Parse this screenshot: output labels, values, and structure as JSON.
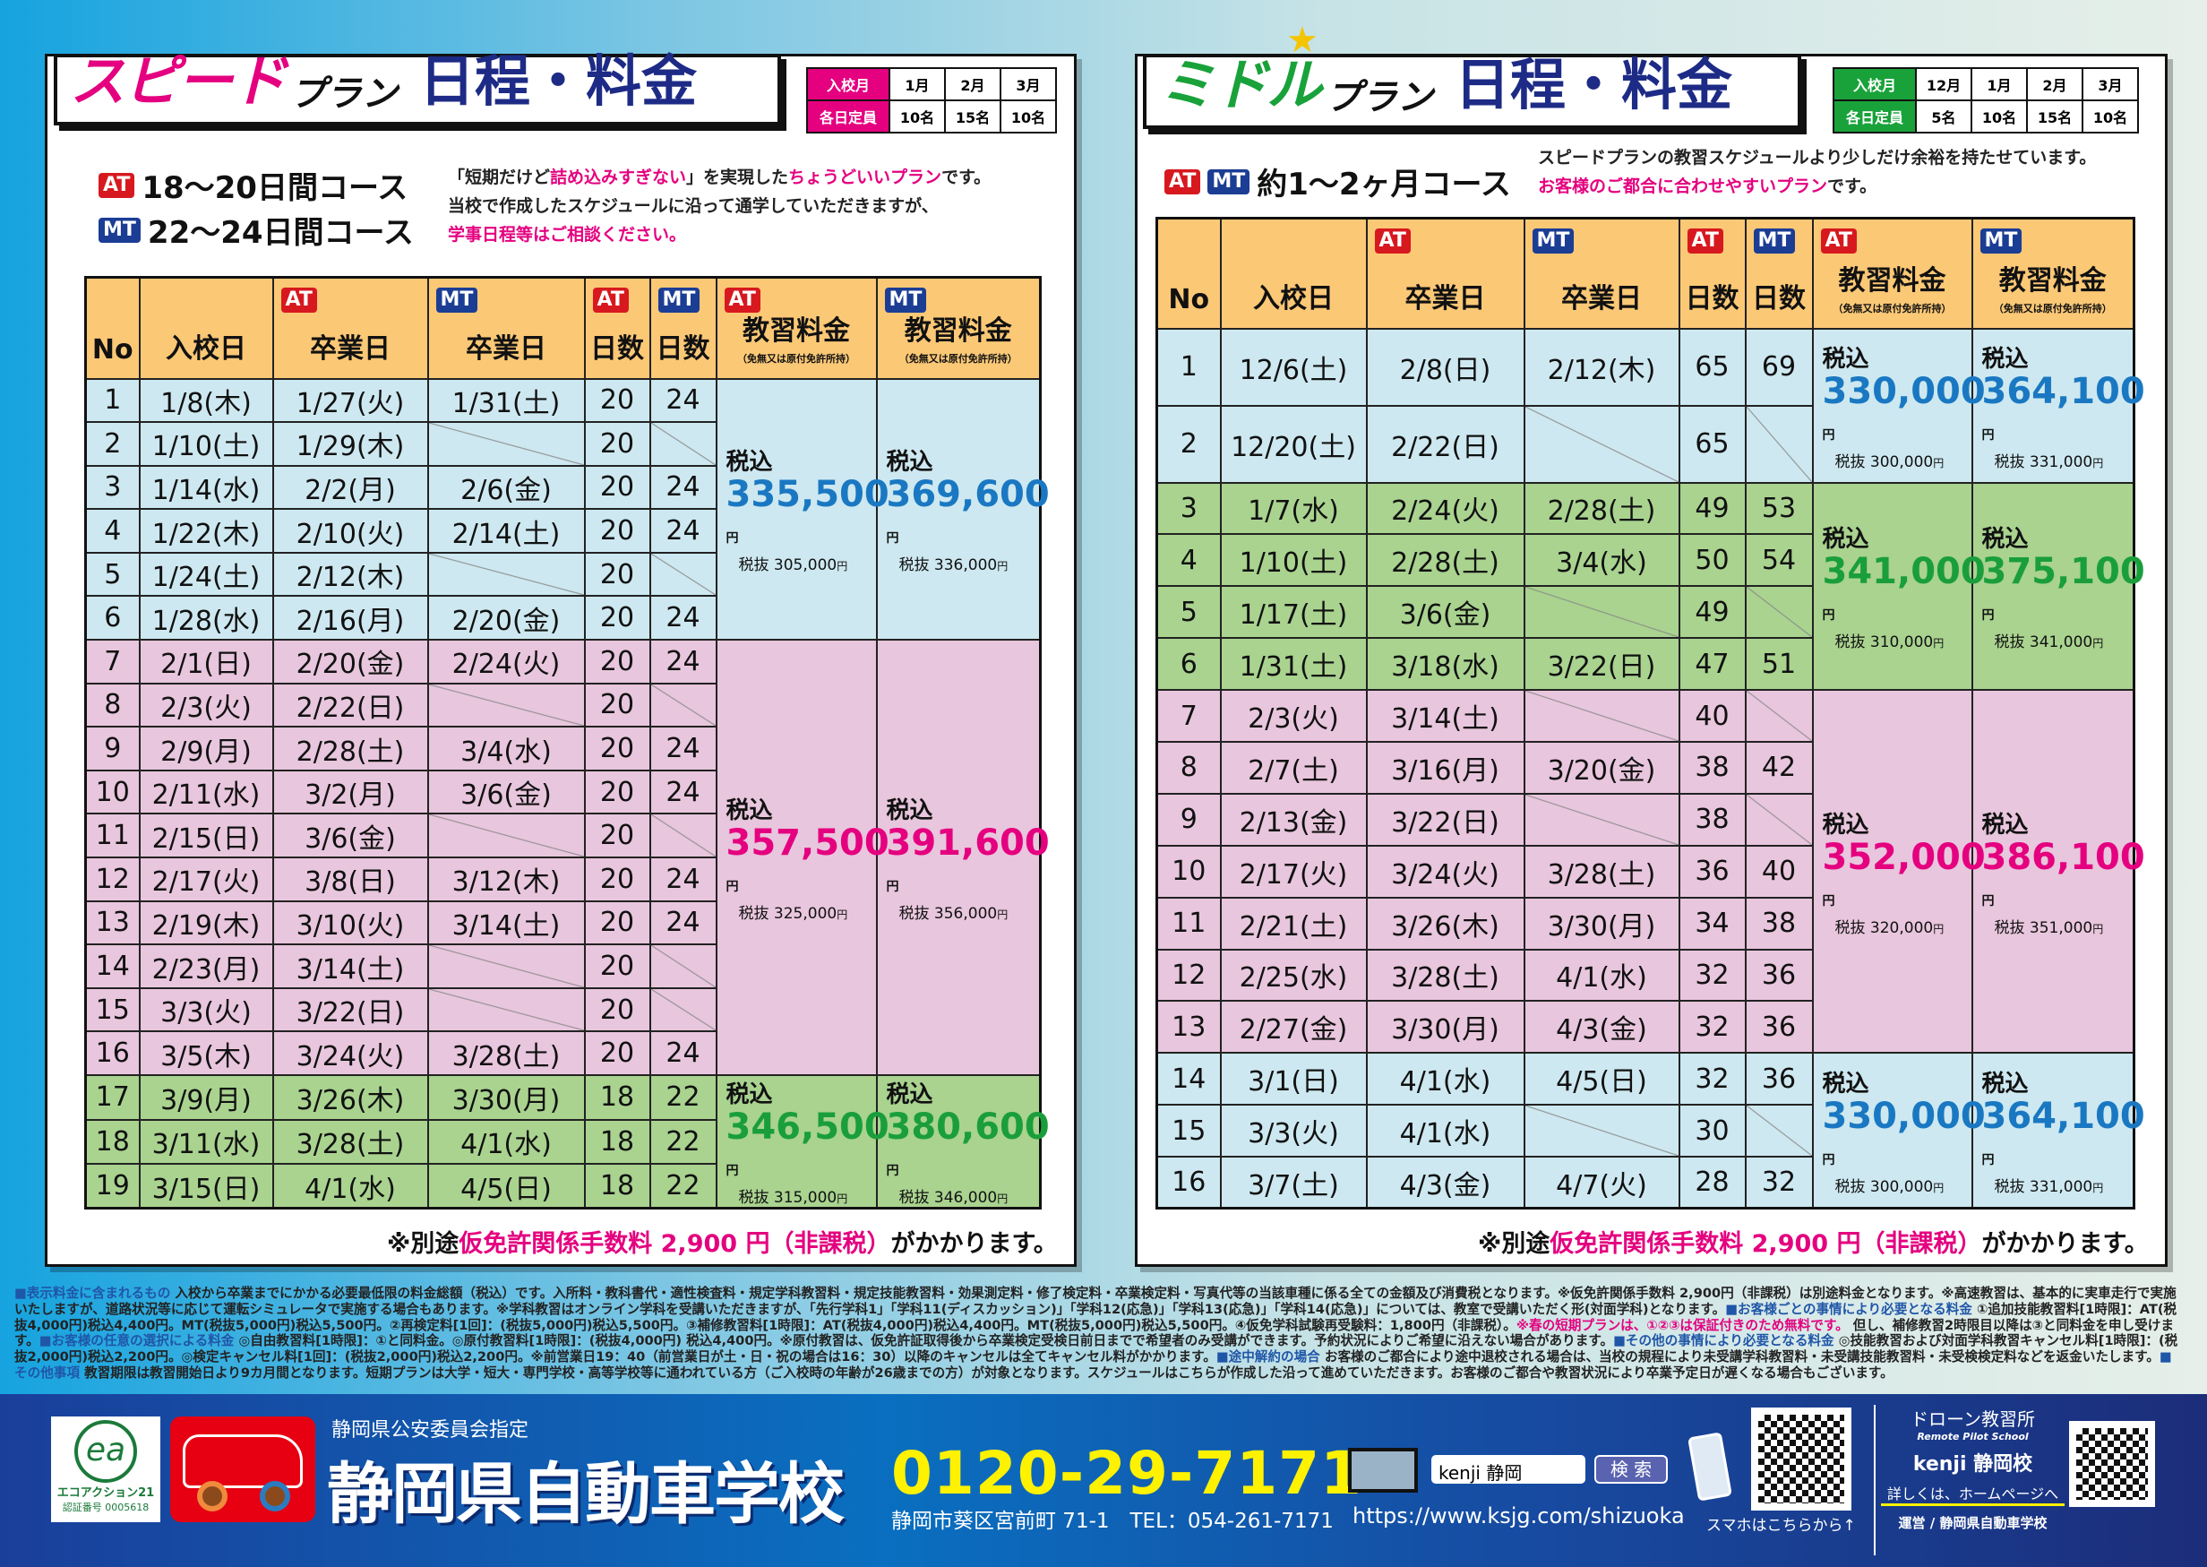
{
  "speed": {
    "title": {
      "a": "スピード",
      "b": "プラン",
      "c": "日程・料金"
    },
    "capacity": {
      "month_label": "入校月",
      "cap_label": "各日定員",
      "months": [
        "1月",
        "2月",
        "3月"
      ],
      "caps": [
        "10名",
        "15名",
        "10名"
      ]
    },
    "courses": [
      {
        "badges": [
          "AT"
        ],
        "text": "18～20日間コース"
      },
      {
        "badges": [
          "MT"
        ],
        "text": "22～24日間コース"
      }
    ],
    "desc": [
      [
        {
          "t": "「短期だけど"
        },
        {
          "t": "詰め込みすぎない",
          "c": "pk"
        },
        {
          "t": "」を実現した"
        },
        {
          "t": "ちょうどいいプラン",
          "c": "pk"
        },
        {
          "t": "です。"
        }
      ],
      [
        {
          "t": "当校で作成したスケジュールに沿って通学していただきますが、"
        }
      ],
      [
        {
          "t": "学事日程等はご相談ください。",
          "c": "pk"
        }
      ]
    ],
    "headers": [
      {
        "t": "No"
      },
      {
        "t": "入校日"
      },
      {
        "t": "卒業日",
        "b": "AT"
      },
      {
        "t": "卒業日",
        "b": "MT"
      },
      {
        "t": "日数",
        "b": "AT"
      },
      {
        "t": "日数",
        "b": "MT"
      },
      {
        "t": "教習料金",
        "b": "AT",
        "s": "（免無又は原付免許所持）"
      },
      {
        "t": "教習料金",
        "b": "MT",
        "s": "（免無又は原付免許所持）"
      }
    ],
    "rows": [
      [
        "1",
        "1/8(木)",
        "1/27(火)",
        "1/31(土)",
        "20",
        "24"
      ],
      [
        "2",
        "1/10(土)",
        "1/29(木)",
        "",
        "20",
        ""
      ],
      [
        "3",
        "1/14(水)",
        "2/2(月)",
        "2/6(金)",
        "20",
        "24"
      ],
      [
        "4",
        "1/22(木)",
        "2/10(火)",
        "2/14(土)",
        "20",
        "24"
      ],
      [
        "5",
        "1/24(土)",
        "2/12(木)",
        "",
        "20",
        ""
      ],
      [
        "6",
        "1/28(水)",
        "2/16(月)",
        "2/20(金)",
        "20",
        "24"
      ],
      [
        "7",
        "2/1(日)",
        "2/20(金)",
        "2/24(火)",
        "20",
        "24"
      ],
      [
        "8",
        "2/3(火)",
        "2/22(日)",
        "",
        "20",
        ""
      ],
      [
        "9",
        "2/9(月)",
        "2/28(土)",
        "3/4(水)",
        "20",
        "24"
      ],
      [
        "10",
        "2/11(水)",
        "3/2(月)",
        "3/6(金)",
        "20",
        "24"
      ],
      [
        "11",
        "2/15(日)",
        "3/6(金)",
        "",
        "20",
        ""
      ],
      [
        "12",
        "2/17(火)",
        "3/8(日)",
        "3/12(木)",
        "20",
        "24"
      ],
      [
        "13",
        "2/19(木)",
        "3/10(火)",
        "3/14(土)",
        "20",
        "24"
      ],
      [
        "14",
        "2/23(月)",
        "3/14(土)",
        "",
        "20",
        ""
      ],
      [
        "15",
        "3/3(火)",
        "3/22(日)",
        "",
        "20",
        ""
      ],
      [
        "16",
        "3/5(木)",
        "3/24(火)",
        "3/28(土)",
        "20",
        "24"
      ],
      [
        "17",
        "3/9(月)",
        "3/26(木)",
        "3/30(月)",
        "18",
        "22"
      ],
      [
        "18",
        "3/11(水)",
        "3/28(土)",
        "4/1(水)",
        "18",
        "22"
      ],
      [
        "19",
        "3/15(日)",
        "4/1(水)",
        "4/5(日)",
        "18",
        "22"
      ]
    ],
    "groups": [
      {
        "rows": 6,
        "band": "blue",
        "color": "#1a78c2",
        "at": {
          "in": "335,500",
          "ex": "305,000"
        },
        "mt": {
          "in": "369,600",
          "ex": "336,000"
        }
      },
      {
        "rows": 10,
        "band": "pink",
        "color": "#e4007f",
        "at": {
          "in": "357,500",
          "ex": "325,000"
        },
        "mt": {
          "in": "391,600",
          "ex": "356,000"
        }
      },
      {
        "rows": 3,
        "band": "green",
        "color": "#1a9e3c",
        "at": {
          "in": "346,500",
          "ex": "315,000"
        },
        "mt": {
          "in": "380,600",
          "ex": "346,000"
        }
      }
    ],
    "note": [
      {
        "t": "※別途"
      },
      {
        "t": "仮免許関係手数料 2,900 円（非課税）",
        "c": "pk"
      },
      {
        "t": "がかかります。"
      }
    ]
  },
  "middle": {
    "title": {
      "a": "ミドル",
      "b": "プラン",
      "c": "日程・料金"
    },
    "capacity": {
      "month_label": "入校月",
      "cap_label": "各日定員",
      "months": [
        "12月",
        "1月",
        "2月",
        "3月"
      ],
      "caps": [
        "5名",
        "10名",
        "15名",
        "10名"
      ]
    },
    "courses": [
      {
        "badges": [
          "AT",
          "MT"
        ],
        "text": "約1～2ヶ月コース"
      }
    ],
    "desc": [
      [
        {
          "t": "スピードプランの教習スケジュールより少しだけ余裕を持たせています。"
        }
      ],
      [
        {
          "t": "お客様のご都合に合わせやすいプラン",
          "c": "pk"
        },
        {
          "t": "です。"
        }
      ]
    ],
    "rows": [
      [
        "1",
        "12/6(土)",
        "2/8(日)",
        "2/12(木)",
        "65",
        "69"
      ],
      [
        "2",
        "12/20(土)",
        "2/22(日)",
        "",
        "65",
        ""
      ],
      [
        "3",
        "1/7(水)",
        "2/24(火)",
        "2/28(土)",
        "49",
        "53"
      ],
      [
        "4",
        "1/10(土)",
        "2/28(土)",
        "3/4(水)",
        "50",
        "54"
      ],
      [
        "5",
        "1/17(土)",
        "3/6(金)",
        "",
        "49",
        ""
      ],
      [
        "6",
        "1/31(土)",
        "3/18(水)",
        "3/22(日)",
        "47",
        "51"
      ],
      [
        "7",
        "2/3(火)",
        "3/14(土)",
        "",
        "40",
        ""
      ],
      [
        "8",
        "2/7(土)",
        "3/16(月)",
        "3/20(金)",
        "38",
        "42"
      ],
      [
        "9",
        "2/13(金)",
        "3/22(日)",
        "",
        "38",
        ""
      ],
      [
        "10",
        "2/17(火)",
        "3/24(火)",
        "3/28(土)",
        "36",
        "40"
      ],
      [
        "11",
        "2/21(土)",
        "3/26(木)",
        "3/30(月)",
        "34",
        "38"
      ],
      [
        "12",
        "2/25(水)",
        "3/28(土)",
        "4/1(水)",
        "32",
        "36"
      ],
      [
        "13",
        "2/27(金)",
        "3/30(月)",
        "4/3(金)",
        "32",
        "36"
      ],
      [
        "14",
        "3/1(日)",
        "4/1(水)",
        "4/5(日)",
        "32",
        "36"
      ],
      [
        "15",
        "3/3(火)",
        "4/1(水)",
        "",
        "30",
        ""
      ],
      [
        "16",
        "3/7(土)",
        "4/3(金)",
        "4/7(火)",
        "28",
        "32"
      ]
    ],
    "groups": [
      {
        "rows": 2,
        "band": "blue",
        "color": "#1a78c2",
        "at": {
          "in": "330,000",
          "ex": "300,000"
        },
        "mt": {
          "in": "364,100",
          "ex": "331,000"
        }
      },
      {
        "rows": 4,
        "band": "green",
        "color": "#1a9e3c",
        "at": {
          "in": "341,000",
          "ex": "310,000"
        },
        "mt": {
          "in": "375,100",
          "ex": "341,000"
        }
      },
      {
        "rows": 7,
        "band": "pink",
        "color": "#e4007f",
        "at": {
          "in": "352,000",
          "ex": "320,000"
        },
        "mt": {
          "in": "386,100",
          "ex": "351,000"
        }
      },
      {
        "rows": 3,
        "band": "blue",
        "color": "#1a78c2",
        "at": {
          "in": "330,000",
          "ex": "300,000"
        },
        "mt": {
          "in": "364,100",
          "ex": "331,000"
        }
      }
    ],
    "note": [
      {
        "t": "※別途"
      },
      {
        "t": "仮免許関係手数料 2,900 円（非課税）",
        "c": "pk"
      },
      {
        "t": "がかかります。"
      }
    ]
  },
  "labels": {
    "tax_in": "税込",
    "tax_ex": "税抜",
    "yen": "円"
  },
  "fine_print": [
    {
      "t": "■表示料金に含まれるもの",
      "c": "h"
    },
    {
      "t": " 入校から卒業までにかかる必要最低限の料金総額（税込）です。入所料・教科書代・適性検査料・規定学科教習料・規定技能教習料・効果測定料・修了検定料・卒業検定料・写真代等の当該車種に係る全ての金額及び消費税となります。※仮免許関係手数料 2,900円（非課税）は別途料金となります。※高速教習は、基本的に実車走行で実施いたしますが、道路状況等に応じて運転シミュレータで実施する場合もあります。※学科教習はオンライン学科を受講いただきますが、「先行学科1」「学科11(ディスカッション)」「学科12(応急)」「学科13(応急)」「学科14(応急)」については、教室で受講いただく形(対面学科)となります。"
    },
    {
      "t": "■お客様ごとの事情により必要となる料金",
      "c": "h"
    },
    {
      "t": " ①追加技能教習料[1時限]：AT(税抜4,000円)税込4,400円。MT(税抜5,000円)税込5,500円。②再検定料[1回]：(税抜5,000円)税込5,500円。③補修教習料[1時限]：AT(税抜4,000円)税込4,400円。MT(税抜5,000円)税込5,500円。④仮免学科試験再受験料：1,800円（非課税）。"
    },
    {
      "t": "※春の短期プランは、①②③は保証付きのため無料です。",
      "c": "pk"
    },
    {
      "t": " 但し、補修教習2時限目以降は③と同料金を申し受けます。"
    },
    {
      "t": "■お客様の任意の選択による料金",
      "c": "h"
    },
    {
      "t": " ◎自由教習料[1時限]：①と同料金。◎原付教習料[1時限]：(税抜4,000円) 税込4,400円。※原付教習は、仮免許証取得後から卒業検定受検日前日までで希望者のみ受講ができます。予約状況によりご希望に沿えない場合があります。"
    },
    {
      "t": "■その他の事情により必要となる料金",
      "c": "h"
    },
    {
      "t": " ◎技能教習および対面学科教習キャンセル料[1時限]：(税抜2,000円)税込2,200円。◎検定キャンセル料[1回]：(税抜2,000円)税込2,200円。※前営業日19：40（前営業日が土・日・祝の場合は16：30）以降のキャンセルは全てキャンセル料がかかります。"
    },
    {
      "t": "■途中解約の場合",
      "c": "h"
    },
    {
      "t": " お客様のご都合により途中退校される場合は、当校の規程により未受講学科教習料・未受講技能教習料・未受検検定料などを返金いたします。"
    },
    {
      "t": "■その他事項",
      "c": "h"
    },
    {
      "t": " 教習期限は教習開始日より9カ月間となります。短期プランは大学・短大・専門学校・高等学校等に通われている方（ご入校時の年齢が26歳までの方）が対象となります。スケジュールはこちらが作成した沿って進めていただきます。お客様のご都合や教習状況により卒業予定日が遅くなる場合もございます。"
    }
  ],
  "footer": {
    "eco_name": "エコアクション21",
    "eco_no": "認証番号 0005618",
    "eco_mark": "ea",
    "car_logo": "kenji D-SCHOOL",
    "designation": "静岡県公安委員会指定",
    "school": "静岡県自動車学校",
    "phone": "0120-29-7171",
    "address": "静岡市葵区宮前町 71-1　TEL：054-261-7171",
    "url": "https://www.ksjg.com/shizuoka",
    "search_value": "kenji 静岡",
    "search_button": "検 索",
    "qr_caption": "スマホはこちらから↑",
    "drone_title": "ドローン教習所",
    "drone_sub": "Remote Pilot School",
    "drone_branch": "kenji 静岡校",
    "drone_more": "詳しくは、ホームページへ",
    "drone_operator": "運営 / 静岡県自動車学校"
  },
  "colors": {
    "at": "#d7191f",
    "mt": "#1b3d94",
    "header": "#fbc876",
    "blue_band": "#cde8f0",
    "pink_band": "#e8c6dd",
    "green_band": "#a9d38f",
    "speed_title": "#e4007f",
    "middle_title": "#19a23a",
    "phone": "#fff200"
  }
}
